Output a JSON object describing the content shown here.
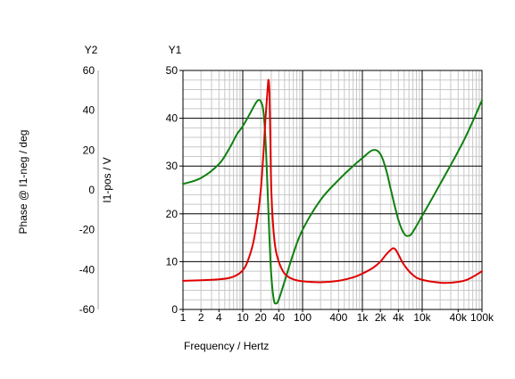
{
  "chart_data": {
    "type": "line",
    "x_scale": "log",
    "xlabel": "Frequency / Hertz",
    "xlim": [
      1,
      100000
    ],
    "x_tick_labels": [
      {
        "value": 1,
        "label": "1"
      },
      {
        "value": 2,
        "label": "2"
      },
      {
        "value": 4,
        "label": "4"
      },
      {
        "value": 10,
        "label": "10"
      },
      {
        "value": 20,
        "label": "20"
      },
      {
        "value": 40,
        "label": "40"
      },
      {
        "value": 100,
        "label": "100"
      },
      {
        "value": 400,
        "label": "400"
      },
      {
        "value": 1000,
        "label": "1k"
      },
      {
        "value": 2000,
        "label": "2k"
      },
      {
        "value": 4000,
        "label": "4k"
      },
      {
        "value": 10000,
        "label": "10k"
      },
      {
        "value": 40000,
        "label": "40k"
      },
      {
        "value": 100000,
        "label": "100k"
      }
    ],
    "y1": {
      "header": "Y1",
      "label": "I1-pos / V",
      "range": [
        0,
        50
      ],
      "ticks": [
        0,
        10,
        20,
        30,
        40,
        50
      ]
    },
    "y2": {
      "header": "Y2",
      "label": "Phase @ I1-neg / deg",
      "range": [
        -60,
        60
      ],
      "ticks": [
        -60,
        -40,
        -20,
        0,
        20,
        40,
        60
      ]
    },
    "grid": true,
    "colors": {
      "red_series": "#e00000",
      "green_series": "#108010",
      "grid": "#c8c8c8",
      "major_grid": "#000000"
    },
    "series": [
      {
        "axis": "y1",
        "color": "#e00000",
        "points": [
          [
            1,
            6.0
          ],
          [
            2,
            6.1
          ],
          [
            4,
            6.3
          ],
          [
            6,
            6.6
          ],
          [
            8,
            7.2
          ],
          [
            10,
            8.2
          ],
          [
            12,
            10.0
          ],
          [
            15,
            14.0
          ],
          [
            18,
            20.0
          ],
          [
            20,
            25.0
          ],
          [
            22,
            32.0
          ],
          [
            24,
            40.0
          ],
          [
            26,
            46.0
          ],
          [
            27,
            48.0
          ],
          [
            28,
            45.0
          ],
          [
            29,
            35.0
          ],
          [
            30,
            25.0
          ],
          [
            32,
            18.0
          ],
          [
            35,
            13.0
          ],
          [
            40,
            10.0
          ],
          [
            50,
            7.5
          ],
          [
            70,
            6.3
          ],
          [
            100,
            5.9
          ],
          [
            200,
            5.7
          ],
          [
            400,
            6.0
          ],
          [
            700,
            6.7
          ],
          [
            1000,
            7.5
          ],
          [
            1500,
            8.7
          ],
          [
            2000,
            10.0
          ],
          [
            2500,
            11.5
          ],
          [
            3000,
            12.5
          ],
          [
            3300,
            12.8
          ],
          [
            3600,
            12.5
          ],
          [
            4000,
            11.5
          ],
          [
            5000,
            9.3
          ],
          [
            7000,
            7.2
          ],
          [
            10000,
            6.2
          ],
          [
            20000,
            5.6
          ],
          [
            30000,
            5.6
          ],
          [
            50000,
            6.0
          ],
          [
            70000,
            6.8
          ],
          [
            100000,
            8.0
          ]
        ]
      },
      {
        "axis": "y2",
        "color": "#108010",
        "points": [
          [
            1,
            3.0
          ],
          [
            2,
            6.0
          ],
          [
            4,
            13.0
          ],
          [
            6,
            21.0
          ],
          [
            8,
            28.0
          ],
          [
            10,
            32.0
          ],
          [
            13,
            38.0
          ],
          [
            16,
            43.0
          ],
          [
            18,
            45.0
          ],
          [
            20,
            44.5
          ],
          [
            22,
            40.0
          ],
          [
            24,
            25.0
          ],
          [
            26,
            0.0
          ],
          [
            28,
            -25.0
          ],
          [
            30,
            -43.0
          ],
          [
            33,
            -55.0
          ],
          [
            36,
            -57.0
          ],
          [
            40,
            -55.0
          ],
          [
            50,
            -46.0
          ],
          [
            70,
            -32.0
          ],
          [
            100,
            -20.0
          ],
          [
            200,
            -5.0
          ],
          [
            400,
            5.0
          ],
          [
            700,
            12.0
          ],
          [
            1000,
            16.0
          ],
          [
            1500,
            20.0
          ],
          [
            2000,
            18.0
          ],
          [
            2500,
            10.0
          ],
          [
            3000,
            0.0
          ],
          [
            4000,
            -15.0
          ],
          [
            5000,
            -22.0
          ],
          [
            6000,
            -23.0
          ],
          [
            7000,
            -21.0
          ],
          [
            10000,
            -13.0
          ],
          [
            20000,
            3.0
          ],
          [
            50000,
            25.0
          ],
          [
            100000,
            45.0
          ]
        ]
      }
    ]
  }
}
